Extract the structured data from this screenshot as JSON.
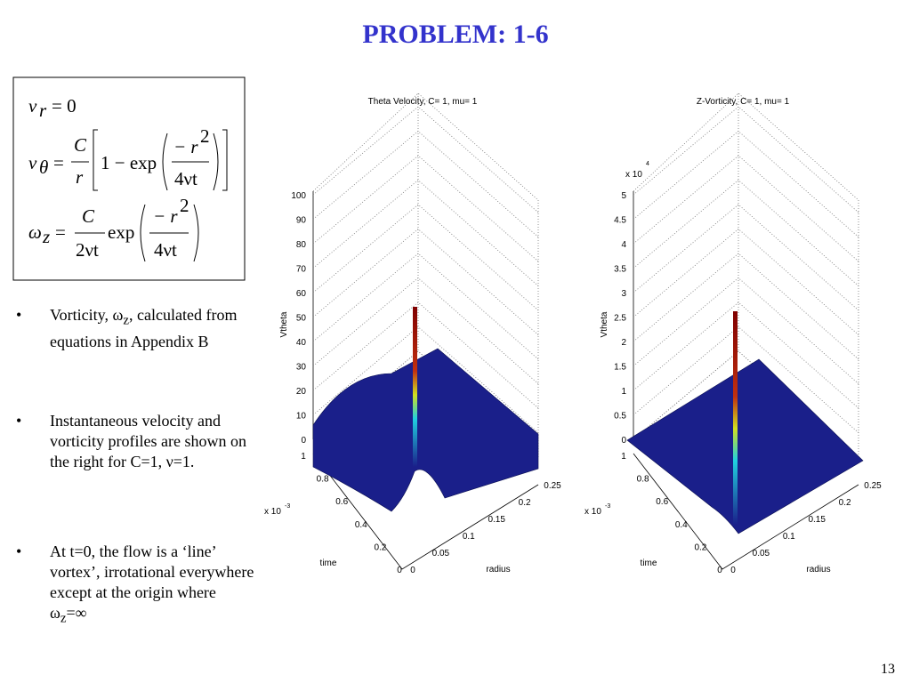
{
  "title": "PROBLEM: 1-6",
  "equations": [
    {
      "lhs": "v",
      "sub": "r",
      "rhs": "= 0"
    },
    {
      "lhs": "v",
      "sub": "θ",
      "eq": "=",
      "num": "C",
      "den": "r",
      "mid": "1 − exp",
      "num2": "− r",
      "sup": "2",
      "den2": "4νt"
    },
    {
      "lhs": "ω",
      "sub": "z",
      "eq": "=",
      "num": "C",
      "den": "2νt",
      "mid": "exp",
      "num2": "− r",
      "sup": "2",
      "den2": "4νt"
    }
  ],
  "bullets": [
    [
      "Vorticity, ω",
      "z",
      ",  calculated from equations in Appendix B"
    ],
    [
      "Instantaneous velocity and vorticity profiles are shown on the right for C=1, ν=1."
    ],
    [
      "At t=0, the flow is a ‘line’ vortex’, irrotational everywhere except at the origin where ω",
      "z",
      "=∞"
    ]
  ],
  "plots": [
    {
      "title": "Theta Velocity, C= 1, mu= 1",
      "zlabel": "Vtheta",
      "xlabel": "time",
      "ylabel": "radius",
      "x_exp": [
        "x 10",
        "-3"
      ],
      "zticks": [
        0,
        10,
        20,
        30,
        40,
        50,
        60,
        70,
        80,
        90,
        100
      ],
      "xticks": [
        0,
        0.2,
        0.4,
        0.6,
        0.8,
        1
      ],
      "yticks": [
        0,
        0.05,
        0.1,
        0.15,
        0.2,
        0.25
      ]
    },
    {
      "title": "Z-Vorticity, C= 1, mu= 1",
      "zlabel": "Vtheta",
      "xlabel": "time",
      "ylabel": "radius",
      "x_exp": [
        "x 10",
        "-3"
      ],
      "z_exp": [
        "x 10",
        "4"
      ],
      "zticks": [
        0,
        0.5,
        1,
        1.5,
        2,
        2.5,
        3,
        3.5,
        4,
        4.5,
        5
      ],
      "xticks": [
        0,
        0.2,
        0.4,
        0.6,
        0.8,
        1
      ],
      "yticks": [
        0,
        0.05,
        0.1,
        0.15,
        0.2,
        0.25
      ]
    }
  ],
  "page_number": "13"
}
